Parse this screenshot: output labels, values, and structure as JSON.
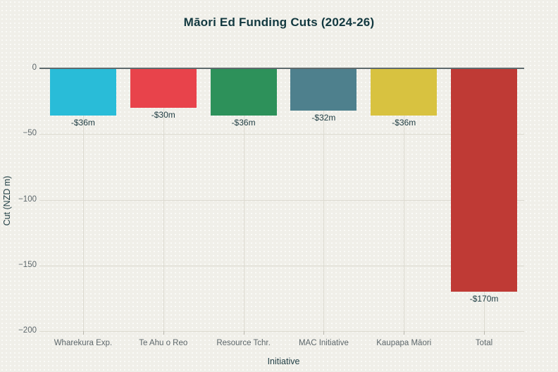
{
  "chart_data": {
    "type": "bar",
    "title": "Māori Ed Funding Cuts (2024-26)",
    "xlabel": "Initiative",
    "ylabel": "Cut (NZD m)",
    "categories": [
      "Wharekura Exp.",
      "Te Ahu o Reo",
      "Resource Tchr.",
      "MAC Initiative",
      "Kaupapa Māori",
      "Total"
    ],
    "values": [
      -36,
      -30,
      -36,
      -32,
      -36,
      -170
    ],
    "value_labels": [
      "-$36m",
      "-$30m",
      "-$36m",
      "-$32m",
      "-$36m",
      "-$170m"
    ],
    "bar_colors": [
      "#29bcd8",
      "#e8434b",
      "#2d915a",
      "#4e808d",
      "#d8c240",
      "#bf3a35"
    ],
    "ylim": [
      -200,
      0
    ],
    "yticks": [
      0,
      -50,
      -100,
      -150,
      -200
    ],
    "ytick_labels": [
      "0",
      "−50",
      "−100",
      "−150",
      "−200"
    ],
    "grid": true,
    "legend": false
  },
  "colors": {
    "background": "#f0efe9",
    "title_text": "#12383f",
    "axis_title_text": "#1e3c42",
    "tick_label_text": "#5d676b",
    "gridline": "#dcdad0",
    "zero_line": "#5f6a6d"
  }
}
